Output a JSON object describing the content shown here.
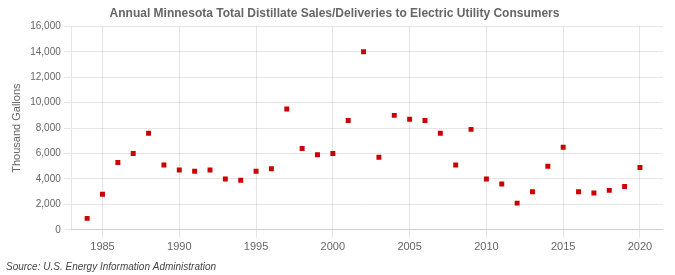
{
  "chart_data": {
    "type": "scatter",
    "title": "Annual Minnesota Total Distillate Sales/Deliveries to Electric Utility Consumers",
    "ylabel": "Thousand Gallons",
    "annotations": [
      "Source: U.S. Energy Information Administration"
    ],
    "x": [
      1984,
      1985,
      1986,
      1987,
      1988,
      1989,
      1990,
      1991,
      1992,
      1993,
      1994,
      1995,
      1996,
      1997,
      1998,
      1999,
      2000,
      2001,
      2002,
      2003,
      2004,
      2005,
      2006,
      2007,
      2008,
      2009,
      2010,
      2011,
      2012,
      2013,
      2014,
      2015,
      2016,
      2017,
      2018,
      2019,
      2020
    ],
    "values": [
      900,
      2800,
      5300,
      6000,
      7600,
      5100,
      4700,
      4600,
      4700,
      4000,
      3900,
      4600,
      4800,
      9500,
      6400,
      5900,
      6000,
      8600,
      14000,
      5700,
      9000,
      8700,
      8600,
      7600,
      5100,
      7900,
      4000,
      3600,
      2100,
      3000,
      5000,
      6500,
      3000,
      2900,
      3100,
      3400,
      4900
    ],
    "color": "#cc0000",
    "marker": "square",
    "xlim": [
      1983,
      2021.5
    ],
    "xticks": [
      1985,
      1990,
      1995,
      2000,
      2005,
      2010,
      2015,
      2020
    ],
    "ylim": [
      0,
      16000
    ],
    "yticks": [
      0,
      {
        "value": 2000,
        "label": "2,000"
      },
      {
        "value": 4000,
        "label": "4,000"
      },
      {
        "value": 6000,
        "label": "6,000"
      },
      {
        "value": 8000,
        "label": "8,000"
      },
      {
        "value": 10000,
        "label": "10,000"
      },
      {
        "value": 12000,
        "label": "12,000"
      },
      {
        "value": 14000,
        "label": "14,000"
      },
      {
        "value": 16000,
        "label": "16,000"
      }
    ],
    "grid": true
  }
}
